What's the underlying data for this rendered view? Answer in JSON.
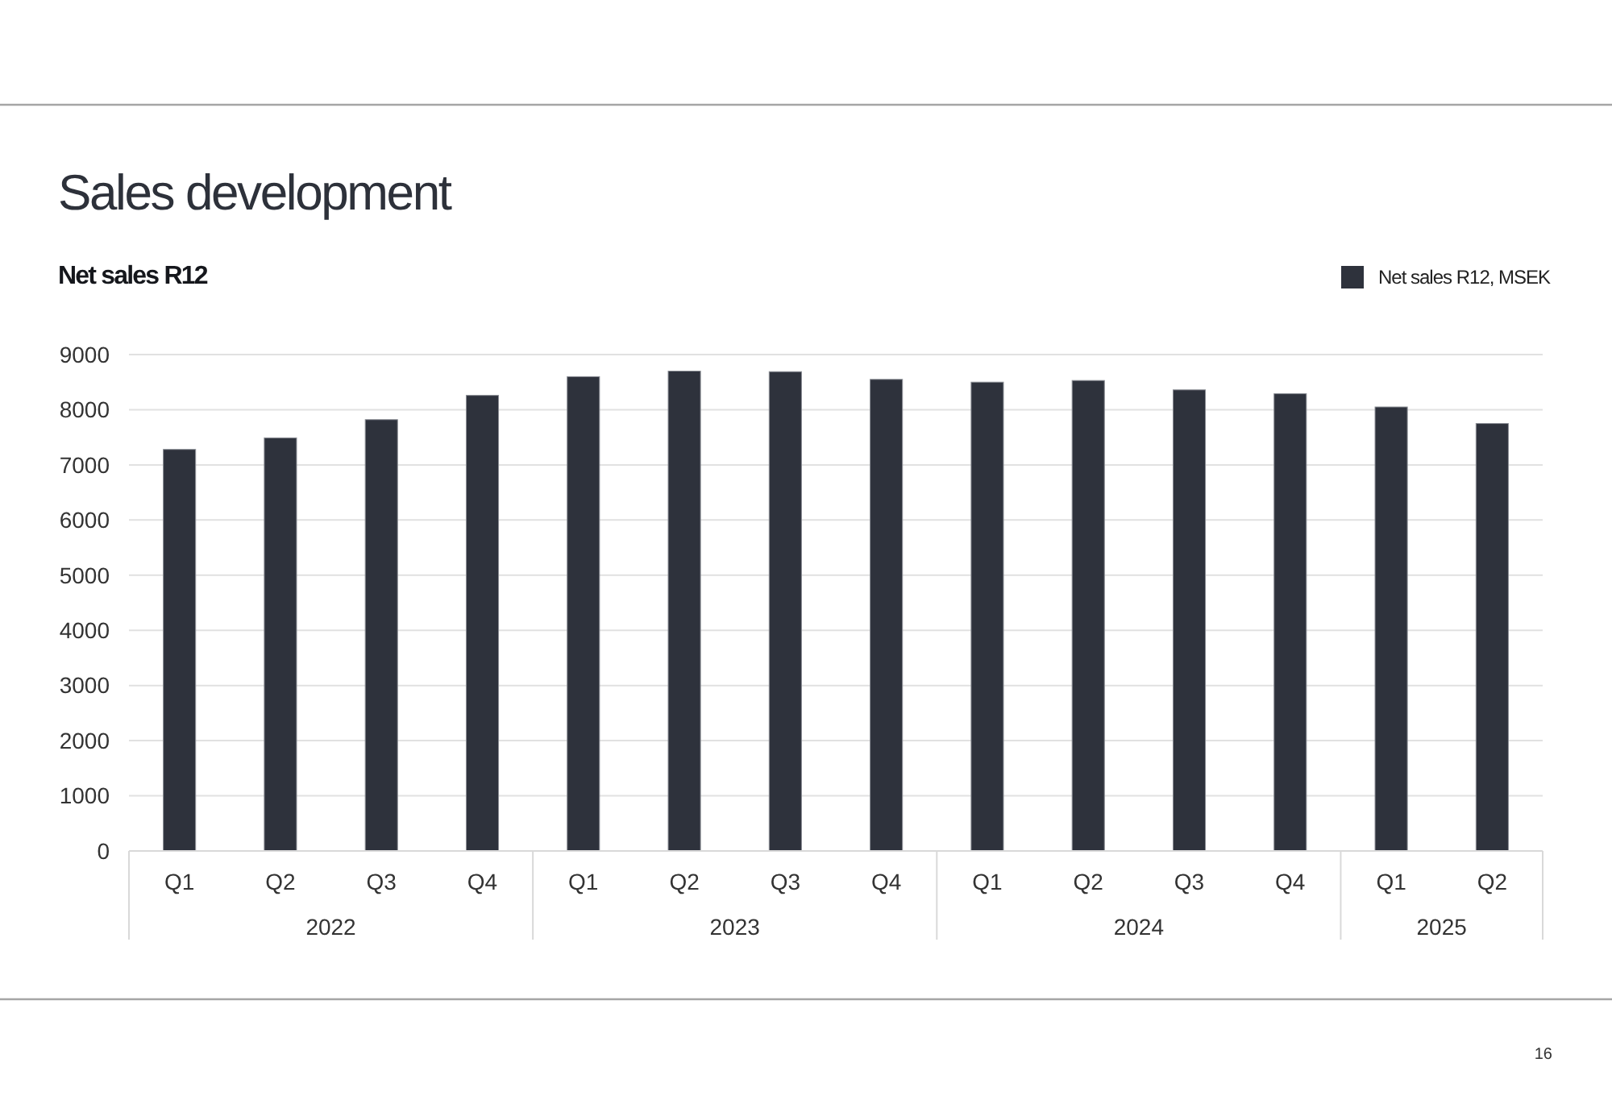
{
  "chart_data": {
    "type": "bar",
    "title": "Sales development",
    "subtitle": "Net sales R12",
    "categories": [
      "Q1",
      "Q2",
      "Q3",
      "Q4",
      "Q1",
      "Q2",
      "Q3",
      "Q4",
      "Q1",
      "Q2",
      "Q3",
      "Q4",
      "Q1",
      "Q2"
    ],
    "series": [
      {
        "name": "Net sales R12, MSEK",
        "color": "#2e323c",
        "values": [
          7280,
          7490,
          7820,
          8260,
          8600,
          8700,
          8690,
          8550,
          8500,
          8530,
          8360,
          8290,
          8050,
          7750
        ]
      }
    ],
    "ylim": [
      0,
      9000
    ],
    "yticks": [
      0,
      1000,
      2000,
      3000,
      4000,
      5000,
      6000,
      7000,
      8000,
      9000
    ],
    "grid": "y",
    "legend": "top right",
    "annotations": [
      "2022",
      "2023",
      "2024",
      "2025",
      "16"
    ]
  }
}
